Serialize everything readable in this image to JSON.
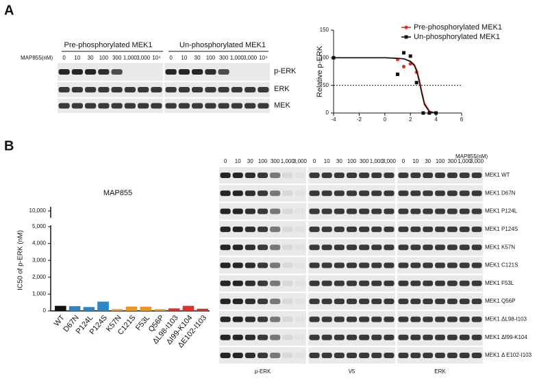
{
  "panel_a": {
    "label": "A",
    "dose_title": "MAP855(nM)",
    "groups": [
      "Pre-phosphorylated MEK1",
      "Un-phosphorylated MEK1"
    ],
    "doses": [
      0,
      10,
      30,
      100,
      300,
      "1,000",
      "3,000",
      "10⁴"
    ],
    "rows": [
      "p-ERK",
      "ERK",
      "MEK"
    ]
  },
  "panel_b": {
    "label": "B",
    "dose_title": "MAP855(nM)",
    "doses": [
      0,
      10,
      30,
      100,
      300,
      "1,000",
      "3,000"
    ],
    "blocks": [
      "p-ERK",
      "V5",
      "ERK"
    ],
    "rows": [
      {
        "label": "MEK1 WT",
        "color": "#111111"
      },
      {
        "label": "MEK1 D67N",
        "color": "#2a86c8"
      },
      {
        "label": "MEK1 P124L",
        "color": "#2a86c8"
      },
      {
        "label": "MEK1 P124S",
        "color": "#2a86c8"
      },
      {
        "label": "MEK1 K57N",
        "color": "#f0961e"
      },
      {
        "label": "MEK1 C121S",
        "color": "#f0961e"
      },
      {
        "label": "MEK1 F53L",
        "color": "#f0961e"
      },
      {
        "label": "MEK1 Q56P",
        "color": "#f0961e"
      },
      {
        "label": "MEK1 ΔL98-I103",
        "color": "#e0302a"
      },
      {
        "label": "MEK1 ΔI99-K104",
        "color": "#e0302a"
      },
      {
        "label": "MEK1 Δ E102-I103",
        "color": "#e0302a"
      }
    ]
  },
  "chart_data": [
    {
      "type": "line",
      "ylabel": "Relative p-ERK",
      "xlim": [
        -4,
        6
      ],
      "xticks": [
        -4,
        -2,
        0,
        2,
        4,
        6
      ],
      "ylim": [
        0,
        150
      ],
      "yticks": [
        0,
        50,
        100,
        150
      ],
      "refline": 50,
      "x": [
        -4,
        1,
        1.48,
        2,
        2.48,
        3,
        3.48,
        4
      ],
      "fit_x": [
        -4,
        0,
        1,
        1.5,
        2,
        2.3,
        2.5,
        2.7,
        2.9,
        3.1,
        3.5,
        4
      ],
      "series": [
        {
          "name": "Pre-phosphorylated MEK1",
          "color": "#e0302a",
          "marker": "circle",
          "values": [
            100,
            97,
            84,
            89,
            74,
            0,
            0,
            0
          ],
          "fit_values": [
            100,
            100,
            99,
            98,
            94,
            88,
            78,
            60,
            38,
            18,
            3,
            0
          ]
        },
        {
          "name": "Un-phosphorylated MEK1",
          "color": "#111111",
          "marker": "square",
          "values": [
            100,
            70,
            109,
            103,
            55,
            0,
            0,
            0
          ],
          "fit_values": [
            100,
            100,
            99,
            98,
            93,
            86,
            75,
            56,
            34,
            15,
            2,
            0
          ]
        }
      ]
    },
    {
      "type": "bar",
      "title": "MAP855",
      "ylabel": "IC50 of p-ERK (nM)",
      "ylim": [
        0,
        10000
      ],
      "ybreak": [
        5000,
        9900
      ],
      "yticks": [
        0,
        {
          "value": 1000,
          "label": "1,000"
        },
        {
          "value": 2000,
          "label": "2,000"
        },
        {
          "value": 3000,
          "label": "3,000"
        },
        {
          "value": 4000,
          "label": "4,000"
        },
        {
          "value": 5000,
          "label": "5,000"
        },
        {
          "value": 10000,
          "label": "10,000"
        }
      ],
      "categories": [
        "WT",
        "D67N",
        "P124L",
        "P124S",
        "K57N",
        "C121S",
        "F53L",
        "Q56P",
        "ΔL98-I103",
        "ΔI99-K104",
        "ΔE102-I103"
      ],
      "values": [
        300,
        280,
        230,
        550,
        100,
        260,
        250,
        100,
        150,
        300,
        130
      ],
      "colors": [
        "#111111",
        "#2a86c8",
        "#2a86c8",
        "#2a86c8",
        "#f0961e",
        "#f0961e",
        "#f0961e",
        "#f0961e",
        "#e0302a",
        "#e0302a",
        "#e0302a"
      ]
    }
  ]
}
